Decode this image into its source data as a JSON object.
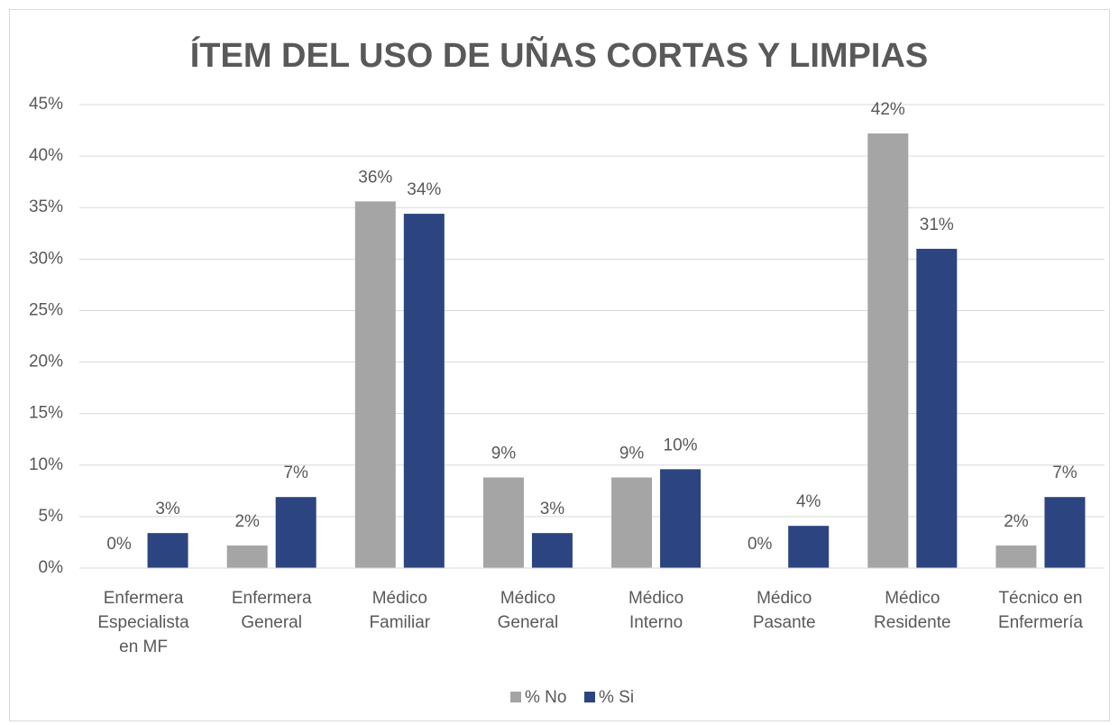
{
  "chart_data": {
    "type": "bar",
    "title": "ÍTEM DEL USO DE UÑAS CORTAS Y LIMPIAS",
    "categories": [
      "Enfermera Especialista en MF",
      "Enfermera General",
      "Médico Familiar",
      "Médico General",
      "Médico Interno",
      "Médico Pasante",
      "Médico Residente",
      "Técnico en Enfermería"
    ],
    "series": [
      {
        "name": "% No",
        "color": "#a5a5a5",
        "values": [
          0,
          2.2,
          35.6,
          8.8,
          8.8,
          0,
          42.2,
          2.2
        ],
        "value_labels": [
          "0%",
          "2%",
          "36%",
          "9%",
          "9%",
          "0%",
          "42%",
          "2%"
        ]
      },
      {
        "name": "% Si",
        "color": "#2c4580",
        "values": [
          3.4,
          6.9,
          34.4,
          3.4,
          9.6,
          4.1,
          31.0,
          6.9
        ],
        "value_labels": [
          "3%",
          "7%",
          "34%",
          "3%",
          "10%",
          "4%",
          "31%",
          "7%"
        ]
      }
    ],
    "ylim": [
      0,
      45
    ],
    "yticks": [
      {
        "value": 0,
        "label": "0%"
      },
      {
        "value": 5,
        "label": "5%"
      },
      {
        "value": 10,
        "label": "10%"
      },
      {
        "value": 15,
        "label": "15%"
      },
      {
        "value": 20,
        "label": "20%"
      },
      {
        "value": 25,
        "label": "25%"
      },
      {
        "value": 30,
        "label": "30%"
      },
      {
        "value": 35,
        "label": "35%"
      },
      {
        "value": 40,
        "label": "40%"
      },
      {
        "value": 45,
        "label": "45%"
      }
    ],
    "grid": true,
    "legend": "bottom"
  }
}
